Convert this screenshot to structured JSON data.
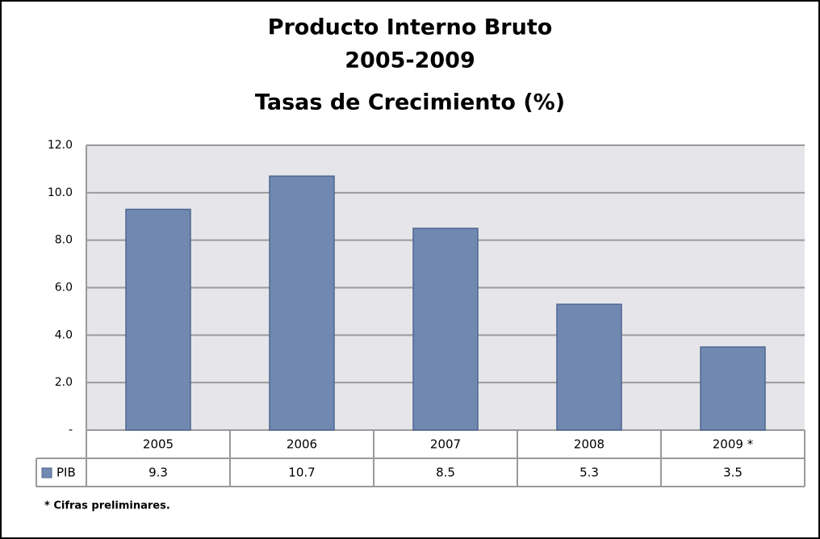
{
  "chart_data": {
    "type": "bar",
    "title": [
      "Producto Interno Bruto",
      "2005-2009",
      "Tasas de Crecimiento (%)"
    ],
    "categories": [
      "2005",
      "2006",
      "2007",
      "2008",
      "2009 *"
    ],
    "series": [
      {
        "name": "PIB",
        "color": "#7189b0",
        "values": [
          9.3,
          10.7,
          8.5,
          5.3,
          3.5
        ]
      }
    ],
    "ylim": [
      0,
      12
    ],
    "yticks": [
      {
        "value": 0,
        "label": "-"
      },
      {
        "value": 2,
        "label": "2.0"
      },
      {
        "value": 4,
        "label": "4.0"
      },
      {
        "value": 6,
        "label": "6.0"
      },
      {
        "value": 8,
        "label": "8.0"
      },
      {
        "value": 10,
        "label": "10.0"
      },
      {
        "value": 12,
        "label": "12.0"
      }
    ],
    "grid": true,
    "note": "* Cifras preliminares."
  }
}
